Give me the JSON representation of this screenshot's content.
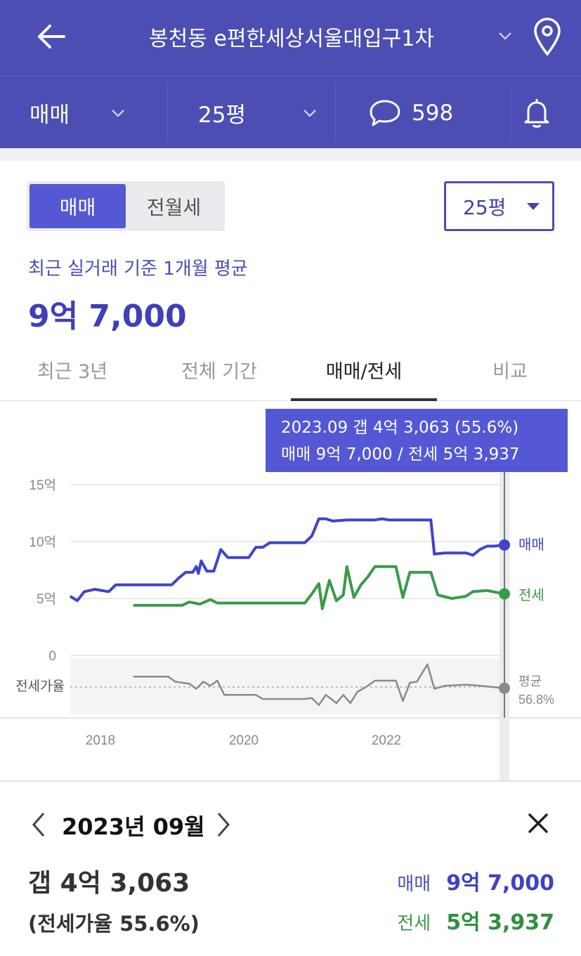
{
  "header": {
    "title": "봉천동 e편한세상서울대입구1차",
    "filters": {
      "trade": "매매",
      "size": "25평",
      "comment_count": "598"
    }
  },
  "controls": {
    "segment": [
      "매매",
      "전월세"
    ],
    "size_select": "25평"
  },
  "summary": {
    "label": "최근 실거래 기준 1개월 평균",
    "value": "9억 7,000"
  },
  "tabs": [
    "최근 3년",
    "전체 기간",
    "매매/전세",
    "비교"
  ],
  "active_tab": "매매/전세",
  "tooltip": {
    "line1": "2023.09  갭 4억 3,063 (55.6%)",
    "line2": "매매 9억 7,000 / 전세 5억 3,937"
  },
  "colors": {
    "header": "#4c4eb3",
    "sale": "#4043cc",
    "jeonse": "#3a9a4a",
    "ratio": "#888888"
  },
  "chart_data": {
    "type": "line",
    "y_unit": "억",
    "yticks": [
      "15억",
      "10억",
      "5억",
      "0"
    ],
    "ylim": [
      0,
      15
    ],
    "xticks": [
      "2018",
      "2020",
      "2022"
    ],
    "xlim": [
      2017.55,
      2023.75
    ],
    "series": [
      {
        "name": "매매",
        "end_label": "매매",
        "points": [
          [
            2017.55,
            5.2
          ],
          [
            2017.65,
            4.8
          ],
          [
            2017.75,
            5.6
          ],
          [
            2017.9,
            5.8
          ],
          [
            2018.1,
            5.6
          ],
          [
            2018.2,
            6.2
          ],
          [
            2018.5,
            6.2
          ],
          [
            2018.8,
            6.2
          ],
          [
            2019.0,
            6.2
          ],
          [
            2019.1,
            6.8
          ],
          [
            2019.2,
            7.3
          ],
          [
            2019.3,
            7.3
          ],
          [
            2019.35,
            7.8
          ],
          [
            2019.38,
            7.2
          ],
          [
            2019.42,
            8.3
          ],
          [
            2019.5,
            7.4
          ],
          [
            2019.6,
            7.4
          ],
          [
            2019.7,
            9.3
          ],
          [
            2019.8,
            8.6
          ],
          [
            2020.1,
            8.6
          ],
          [
            2020.2,
            9.5
          ],
          [
            2020.3,
            9.5
          ],
          [
            2020.4,
            9.9
          ],
          [
            2020.9,
            9.9
          ],
          [
            2021.0,
            10.5
          ],
          [
            2021.1,
            12.0
          ],
          [
            2021.2,
            12.0
          ],
          [
            2021.3,
            11.8
          ],
          [
            2021.5,
            11.9
          ],
          [
            2021.9,
            11.9
          ],
          [
            2022.0,
            12.0
          ],
          [
            2022.1,
            11.9
          ],
          [
            2022.7,
            11.9
          ],
          [
            2022.75,
            8.9
          ],
          [
            2022.9,
            9.0
          ],
          [
            2023.2,
            9.0
          ],
          [
            2023.3,
            8.8
          ],
          [
            2023.4,
            9.3
          ],
          [
            2023.5,
            9.6
          ],
          [
            2023.6,
            9.6
          ],
          [
            2023.75,
            9.7
          ]
        ]
      },
      {
        "name": "전세",
        "end_label": "전세",
        "points": [
          [
            2018.45,
            4.4
          ],
          [
            2019.15,
            4.4
          ],
          [
            2019.25,
            4.7
          ],
          [
            2019.4,
            4.5
          ],
          [
            2019.55,
            4.9
          ],
          [
            2019.65,
            4.6
          ],
          [
            2019.8,
            4.6
          ],
          [
            2020.9,
            4.6
          ],
          [
            2021.0,
            5.4
          ],
          [
            2021.1,
            6.3
          ],
          [
            2021.15,
            4.1
          ],
          [
            2021.25,
            6.6
          ],
          [
            2021.35,
            4.8
          ],
          [
            2021.45,
            5.3
          ],
          [
            2021.5,
            7.8
          ],
          [
            2021.6,
            5.1
          ],
          [
            2021.7,
            6.2
          ],
          [
            2021.8,
            6.9
          ],
          [
            2021.9,
            7.8
          ],
          [
            2022.2,
            7.8
          ],
          [
            2022.3,
            5.1
          ],
          [
            2022.4,
            7.3
          ],
          [
            2022.6,
            7.3
          ],
          [
            2022.7,
            7.3
          ],
          [
            2022.8,
            5.3
          ],
          [
            2023.0,
            5.0
          ],
          [
            2023.2,
            5.2
          ],
          [
            2023.3,
            5.6
          ],
          [
            2023.5,
            5.7
          ],
          [
            2023.75,
            5.4
          ]
        ]
      }
    ],
    "ratio_series": {
      "name": "전세가율",
      "avg_label": "평균",
      "avg_value": "56.8%",
      "current": 55.6,
      "points": [
        [
          2018.45,
          67
        ],
        [
          2018.95,
          67
        ],
        [
          2019.05,
          62
        ],
        [
          2019.25,
          60
        ],
        [
          2019.35,
          55
        ],
        [
          2019.45,
          62
        ],
        [
          2019.55,
          58
        ],
        [
          2019.65,
          63
        ],
        [
          2019.75,
          49
        ],
        [
          2020.2,
          49
        ],
        [
          2020.3,
          45
        ],
        [
          2020.9,
          45
        ],
        [
          2021.0,
          46
        ],
        [
          2021.1,
          39
        ],
        [
          2021.2,
          49
        ],
        [
          2021.35,
          41
        ],
        [
          2021.45,
          49
        ],
        [
          2021.55,
          41
        ],
        [
          2021.65,
          52
        ],
        [
          2021.8,
          58
        ],
        [
          2021.9,
          63
        ],
        [
          2022.2,
          63
        ],
        [
          2022.3,
          43
        ],
        [
          2022.4,
          61
        ],
        [
          2022.5,
          62
        ],
        [
          2022.65,
          79
        ],
        [
          2022.75,
          55
        ],
        [
          2022.9,
          58
        ],
        [
          2023.2,
          59
        ],
        [
          2023.4,
          58
        ],
        [
          2023.75,
          55.6
        ]
      ]
    }
  },
  "detail": {
    "date": "2023년 09월",
    "gap": "갭 4억 3,063",
    "ratio": "(전세가율 55.6%)",
    "sale_label": "매매",
    "sale_value": "9억 7,000",
    "jeonse_label": "전세",
    "jeonse_value": "5억 3,937"
  }
}
